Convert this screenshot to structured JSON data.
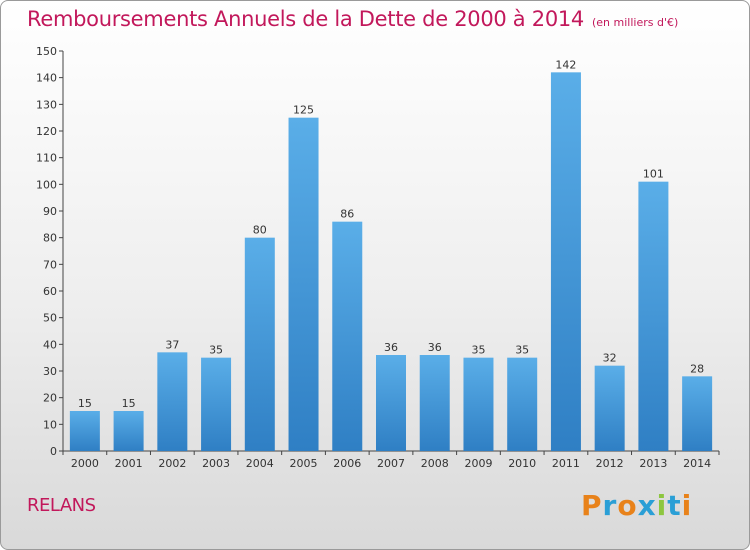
{
  "header": {
    "title": "Remboursements Annuels de la Dette de 2000 à 2014",
    "subtitle": "(en milliers d'€)"
  },
  "footer": {
    "location": "RELANS",
    "brand": "Proxiti",
    "brand_colors": [
      "#e8821a",
      "#2a9fd6",
      "#e8821a",
      "#2a9fd6",
      "#8dc63f",
      "#2a9fd6",
      "#e8821a"
    ]
  },
  "chart_data": {
    "type": "bar",
    "title": "Remboursements Annuels de la Dette de 2000 à 2014",
    "subtitle": "(en milliers d'€)",
    "xlabel": "",
    "ylabel": "",
    "categories": [
      "2000",
      "2001",
      "2002",
      "2003",
      "2004",
      "2005",
      "2006",
      "2007",
      "2008",
      "2009",
      "2010",
      "2011",
      "2012",
      "2013",
      "2014"
    ],
    "values": [
      15,
      15,
      37,
      35,
      80,
      125,
      86,
      36,
      36,
      35,
      35,
      142,
      32,
      101,
      28
    ],
    "data_labels": [
      "15",
      "15",
      "37",
      "35",
      "80",
      "125",
      "86",
      "36",
      "36",
      "35",
      "35",
      "142",
      "32",
      "101",
      "28"
    ],
    "ylim": [
      0,
      150
    ],
    "yticks": [
      "0",
      "10",
      "20",
      "30",
      "40",
      "50",
      "60",
      "70",
      "80",
      "90",
      "100",
      "110",
      "120",
      "130",
      "140",
      "150"
    ],
    "grid": false,
    "legend": "none",
    "bar_color_top": "#5aaee8",
    "bar_color_bottom": "#2f7fc4"
  }
}
